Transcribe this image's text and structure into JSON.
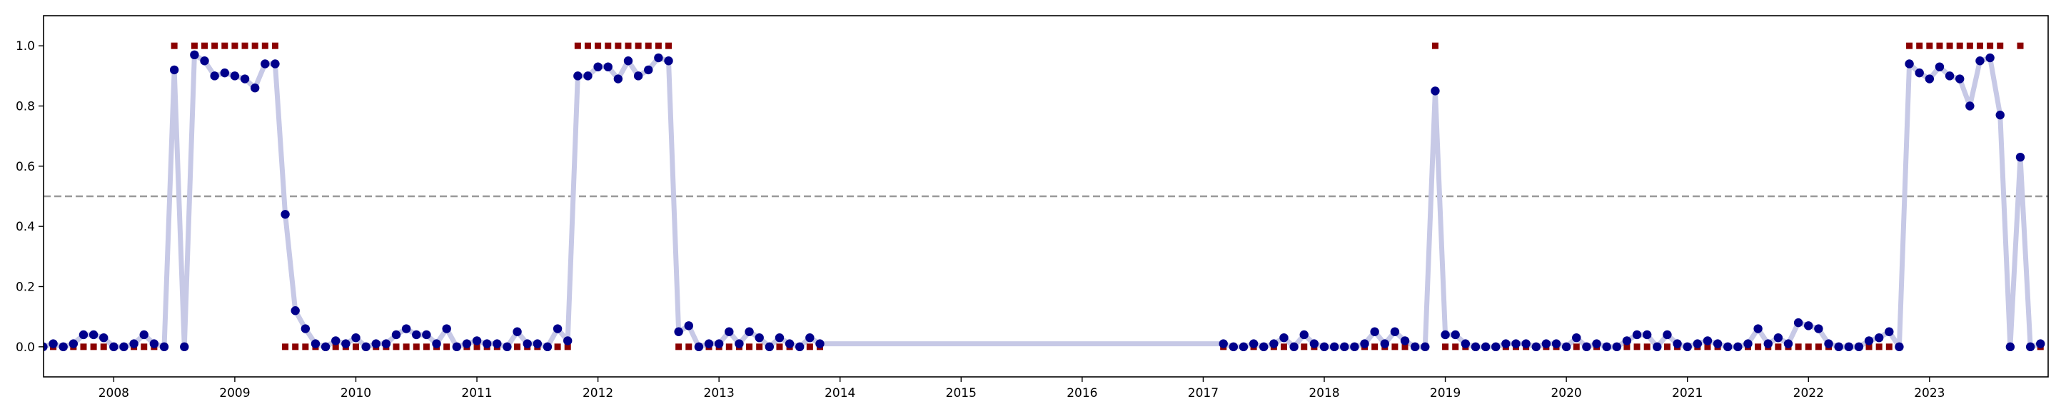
{
  "chart_data": {
    "type": "scatter",
    "xlim": [
      2007.42,
      2023.98
    ],
    "ylim": [
      -0.1,
      1.1
    ],
    "yticks": [
      {
        "value": 0.0,
        "label": "0.0"
      },
      {
        "value": 0.2,
        "label": "0.2"
      },
      {
        "value": 0.4,
        "label": "0.4"
      },
      {
        "value": 0.6,
        "label": "0.6"
      },
      {
        "value": 0.8,
        "label": "0.8"
      },
      {
        "value": 1.0,
        "label": "1.0"
      }
    ],
    "xticks": [
      {
        "value": 2008,
        "label": "2008"
      },
      {
        "value": 2009,
        "label": "2009"
      },
      {
        "value": 2010,
        "label": "2010"
      },
      {
        "value": 2011,
        "label": "2011"
      },
      {
        "value": 2012,
        "label": "2012"
      },
      {
        "value": 2013,
        "label": "2013"
      },
      {
        "value": 2014,
        "label": "2014"
      },
      {
        "value": 2015,
        "label": "2015"
      },
      {
        "value": 2016,
        "label": "2016"
      },
      {
        "value": 2017,
        "label": "2017"
      },
      {
        "value": 2018,
        "label": "2018"
      },
      {
        "value": 2019,
        "label": "2019"
      },
      {
        "value": 2020,
        "label": "2020"
      },
      {
        "value": 2021,
        "label": "2021"
      },
      {
        "value": 2022,
        "label": "2022"
      },
      {
        "value": 2023,
        "label": "2023"
      }
    ],
    "threshold": 0.5,
    "grid": false,
    "colors": {
      "probability_line": "#c7c9e6",
      "probability_points": "#00008b",
      "labels": "#8b0000",
      "threshold": "#999999"
    },
    "series": [
      {
        "kind": "probability",
        "start": [
          2007,
          6
        ],
        "segments": [
          {
            "values": [
              0.0,
              0.01,
              0.0,
              0.01,
              0.04,
              0.04,
              0.03,
              0.0,
              0.0,
              0.01,
              0.04,
              0.01,
              0.0,
              0.92,
              0.0,
              0.97,
              0.95,
              0.9,
              0.91,
              0.9,
              0.89,
              0.86,
              0.94,
              0.94,
              0.44,
              0.12,
              0.06,
              0.01,
              0.0,
              0.02,
              0.01,
              0.03,
              0.0,
              0.01,
              0.01,
              0.04,
              0.06,
              0.04,
              0.04,
              0.01,
              0.06,
              0.0,
              0.01,
              0.02,
              0.01,
              0.01,
              0.0,
              0.05,
              0.01,
              0.01,
              0.0,
              0.06,
              0.02,
              0.9,
              0.9,
              0.93,
              0.93,
              0.89,
              0.95,
              0.9,
              0.92,
              0.96,
              0.95,
              0.05,
              0.07,
              0.0,
              0.01,
              0.01,
              0.05,
              0.01,
              0.05,
              0.03,
              0.0,
              0.03,
              0.01,
              0.0,
              0.03,
              0.01
            ]
          },
          {
            "start": [
              2017,
              3
            ],
            "values": [
              0.01,
              0.0,
              0.0,
              0.01,
              0.0,
              0.01,
              0.03,
              0.0,
              0.04,
              0.01,
              0.0,
              0.0,
              0.0,
              0.0,
              0.01,
              0.05,
              0.01,
              0.05,
              0.02,
              0.0,
              0.0,
              0.85,
              0.04,
              0.04,
              0.01,
              0.0,
              0.0,
              0.0,
              0.01,
              0.01,
              0.01,
              0.0,
              0.01,
              0.01,
              0.0,
              0.03,
              0.0,
              0.01,
              0.0,
              0.0,
              0.02,
              0.04,
              0.04,
              0.0,
              0.04,
              0.01,
              0.0,
              0.01,
              0.02,
              0.01,
              0.0,
              0.0,
              0.01,
              0.06,
              0.01,
              0.03,
              0.01,
              0.08,
              0.07,
              0.06,
              0.01,
              0.0,
              0.0,
              0.0,
              0.02,
              0.03,
              0.05,
              0.0,
              0.94,
              0.91,
              0.89,
              0.93,
              0.9,
              0.89,
              0.8,
              0.95,
              0.96,
              0.77,
              0.0,
              0.63,
              0.0,
              0.01
            ]
          }
        ]
      },
      {
        "kind": "label",
        "start": [
          2007,
          6
        ],
        "segments": [
          {
            "values": [
              0,
              0,
              0,
              0,
              0,
              0,
              0,
              0,
              0,
              0,
              0,
              0,
              0,
              1,
              0,
              1,
              1,
              1,
              1,
              1,
              1,
              1,
              1,
              1,
              0,
              0,
              0,
              0,
              0,
              0,
              0,
              0,
              0,
              0,
              0,
              0,
              0,
              0,
              0,
              0,
              0,
              0,
              0,
              0,
              0,
              0,
              0,
              0,
              0,
              0,
              0,
              0,
              0,
              1,
              1,
              1,
              1,
              1,
              1,
              1,
              1,
              1,
              1,
              0,
              0,
              0,
              0,
              0,
              0,
              0,
              0,
              0,
              0,
              0,
              0,
              0,
              0,
              0
            ]
          },
          {
            "start": [
              2017,
              3
            ],
            "values": [
              0,
              0,
              0,
              0,
              0,
              0,
              0,
              0,
              0,
              0,
              0,
              0,
              0,
              0,
              0,
              0,
              0,
              0,
              0,
              0,
              0,
              1,
              0,
              0,
              0,
              0,
              0,
              0,
              0,
              0,
              0,
              0,
              0,
              0,
              0,
              0,
              0,
              0,
              0,
              0,
              0,
              0,
              0,
              0,
              0,
              0,
              0,
              0,
              0,
              0,
              0,
              0,
              0,
              0,
              0,
              0,
              0,
              0,
              0,
              0,
              0,
              0,
              0,
              0,
              0,
              0,
              0,
              0,
              1,
              1,
              1,
              1,
              1,
              1,
              1,
              1,
              1,
              1,
              0,
              1,
              0,
              0
            ]
          }
        ]
      }
    ]
  }
}
